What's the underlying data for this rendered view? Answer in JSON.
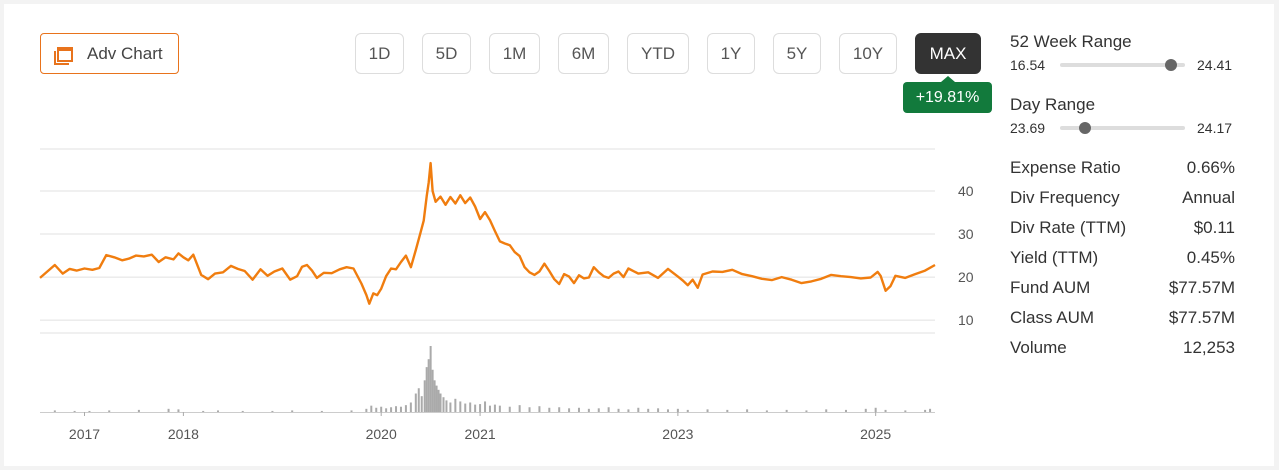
{
  "toolbar": {
    "adv_chart_label": "Adv Chart",
    "ranges": [
      "1D",
      "5D",
      "1M",
      "6M",
      "YTD",
      "1Y",
      "5Y",
      "10Y",
      "MAX"
    ],
    "active_range": "MAX",
    "change_badge": "+19.81%"
  },
  "week52": {
    "title": "52 Week Range",
    "low": "16.54",
    "high": "24.41",
    "position": 0.89
  },
  "day": {
    "title": "Day Range",
    "low": "23.69",
    "high": "24.17",
    "position": 0.2
  },
  "stats": [
    {
      "label": "Expense Ratio",
      "value": "0.66%"
    },
    {
      "label": "Div Frequency",
      "value": "Annual"
    },
    {
      "label": "Div Rate (TTM)",
      "value": "$0.11"
    },
    {
      "label": "Yield (TTM)",
      "value": "0.45%"
    },
    {
      "label": "Fund AUM",
      "value": "$77.57M"
    },
    {
      "label": "Class AUM",
      "value": "$77.57M"
    },
    {
      "label": "Volume",
      "value": "12,253"
    }
  ],
  "colors": {
    "line": "#f07d0f",
    "accent": "#e8731c",
    "badge": "#127a3c",
    "volume": "#aaaaaa"
  },
  "chart_data": {
    "type": "line",
    "y_ticks": [
      10,
      20,
      30,
      40
    ],
    "ylim": [
      7,
      50
    ],
    "xlim": [
      2016.55,
      2025.6
    ],
    "x_ticks": [
      {
        "x": 2017,
        "label": "2017"
      },
      {
        "x": 2018,
        "label": "2018"
      },
      {
        "x": 2020,
        "label": "2020"
      },
      {
        "x": 2021,
        "label": "2021"
      },
      {
        "x": 2023,
        "label": "2023"
      },
      {
        "x": 2025,
        "label": "2025"
      }
    ],
    "series": [
      {
        "x": [
          2016.55,
          2016.62,
          2016.7,
          2016.78,
          2016.85,
          2016.92,
          2017.0,
          2017.08,
          2017.15,
          2017.22,
          2017.3,
          2017.38,
          2017.45,
          2017.52,
          2017.6,
          2017.68,
          2017.75,
          2017.82,
          2017.9,
          2017.95,
          2018.0,
          2018.05,
          2018.1,
          2018.18,
          2018.25,
          2018.32,
          2018.4,
          2018.48,
          2018.55,
          2018.62,
          2018.7,
          2018.78,
          2018.85,
          2018.92,
          2019.0,
          2019.08,
          2019.15,
          2019.2,
          2019.25,
          2019.3,
          2019.35,
          2019.42,
          2019.5,
          2019.58,
          2019.65,
          2019.72,
          2019.8,
          2019.85,
          2019.88,
          2019.92,
          2019.96,
          2020.0,
          2020.05,
          2020.1,
          2020.15,
          2020.2,
          2020.25,
          2020.3,
          2020.35,
          2020.4,
          2020.43,
          2020.46,
          2020.48,
          2020.5,
          2020.52,
          2020.55,
          2020.6,
          2020.65,
          2020.7,
          2020.75,
          2020.8,
          2020.85,
          2020.9,
          2020.95,
          2021.0,
          2021.05,
          2021.1,
          2021.15,
          2021.2,
          2021.25,
          2021.3,
          2021.35,
          2021.4,
          2021.45,
          2021.5,
          2021.55,
          2021.6,
          2021.65,
          2021.7,
          2021.75,
          2021.8,
          2021.85,
          2021.9,
          2021.95,
          2022.0,
          2022.05,
          2022.1,
          2022.15,
          2022.2,
          2022.25,
          2022.3,
          2022.35,
          2022.4,
          2022.45,
          2022.5,
          2022.6,
          2022.7,
          2022.8,
          2022.9,
          2023.0,
          2023.05,
          2023.1,
          2023.15,
          2023.2,
          2023.25,
          2023.35,
          2023.45,
          2023.55,
          2023.65,
          2023.75,
          2023.85,
          2023.95,
          2024.05,
          2024.15,
          2024.25,
          2024.35,
          2024.45,
          2024.55,
          2024.65,
          2024.75,
          2024.85,
          2024.95,
          2025.02,
          2025.05,
          2025.1,
          2025.15,
          2025.2,
          2025.3,
          2025.4,
          2025.5,
          2025.6
        ],
        "y": [
          19.8,
          21.2,
          22.8,
          20.8,
          21.9,
          21.5,
          22.0,
          21.7,
          22.1,
          25.1,
          24.6,
          23.9,
          24.3,
          25.0,
          24.8,
          25.2,
          23.5,
          24.6,
          24.1,
          25.5,
          24.6,
          23.9,
          25.2,
          20.5,
          19.5,
          20.8,
          21.1,
          22.6,
          21.9,
          21.4,
          19.4,
          21.8,
          20.3,
          21.3,
          22.0,
          19.4,
          20.2,
          22.4,
          22.8,
          21.5,
          19.8,
          21.0,
          20.9,
          21.8,
          22.3,
          22.0,
          18.5,
          15.8,
          13.8,
          16.2,
          15.8,
          17.3,
          20.2,
          22.0,
          21.8,
          23.5,
          25.0,
          22.3,
          26.3,
          30.5,
          33.1,
          38.8,
          42.0,
          46.5,
          40.0,
          37.5,
          38.7,
          36.8,
          38.6,
          37.1,
          39.0,
          37.2,
          38.5,
          36.4,
          33.5,
          35.1,
          33.2,
          30.7,
          28.3,
          27.8,
          27.4,
          25.8,
          24.9,
          22.3,
          21.1,
          20.5,
          21.3,
          23.1,
          21.4,
          19.5,
          18.4,
          20.7,
          20.1,
          18.6,
          20.4,
          19.7,
          19.9,
          22.3,
          21.1,
          20.2,
          19.8,
          20.8,
          21.3,
          20.0,
          22.0,
          20.8,
          21.1,
          19.8,
          21.9,
          20.1,
          19.2,
          18.1,
          19.4,
          17.5,
          20.6,
          21.3,
          21.2,
          21.7,
          20.7,
          20.2,
          19.6,
          19.3,
          20.0,
          19.4,
          18.6,
          19.0,
          19.6,
          20.5,
          20.2,
          20.0,
          19.7,
          19.9,
          21.2,
          20.3,
          16.8,
          17.9,
          20.3,
          19.8,
          20.7,
          21.5,
          22.8
        ]
      }
    ],
    "volume_x": [
      2016.7,
      2016.9,
      2017.05,
      2017.25,
      2017.55,
      2017.85,
      2017.95,
      2018.2,
      2018.35,
      2018.6,
      2018.9,
      2019.1,
      2019.4,
      2019.7,
      2019.85,
      2019.9,
      2019.95,
      2020.0,
      2020.05,
      2020.1,
      2020.15,
      2020.2,
      2020.25,
      2020.3,
      2020.35,
      2020.38,
      2020.41,
      2020.44,
      2020.46,
      2020.48,
      2020.5,
      2020.52,
      2020.54,
      2020.56,
      2020.58,
      2020.6,
      2020.63,
      2020.66,
      2020.7,
      2020.75,
      2020.8,
      2020.85,
      2020.9,
      2020.95,
      2021.0,
      2021.05,
      2021.1,
      2021.15,
      2021.2,
      2021.3,
      2021.4,
      2021.5,
      2021.6,
      2021.7,
      2021.8,
      2021.9,
      2022.0,
      2022.1,
      2022.2,
      2022.3,
      2022.4,
      2022.5,
      2022.6,
      2022.7,
      2022.8,
      2022.9,
      2023.0,
      2023.1,
      2023.3,
      2023.5,
      2023.7,
      2023.9,
      2024.1,
      2024.3,
      2024.5,
      2024.7,
      2024.9,
      2025.0,
      2025.1,
      2025.3,
      2025.5,
      2025.55
    ],
    "volume_y": [
      0.3,
      0.2,
      0.2,
      0.3,
      0.4,
      0.6,
      0.5,
      0.2,
      0.3,
      0.2,
      0.2,
      0.3,
      0.2,
      0.3,
      0.6,
      1.2,
      0.8,
      1.0,
      0.7,
      0.9,
      1.1,
      1.0,
      1.3,
      1.8,
      3.5,
      4.5,
      3.0,
      6.0,
      8.5,
      10.0,
      12.5,
      8.0,
      6.0,
      5.0,
      4.2,
      3.5,
      2.8,
      2.2,
      1.8,
      2.5,
      2.0,
      1.6,
      1.8,
      1.4,
      1.5,
      2.0,
      1.2,
      1.4,
      1.2,
      1.0,
      1.3,
      0.9,
      1.1,
      0.8,
      0.9,
      0.7,
      0.8,
      0.6,
      0.7,
      0.9,
      0.6,
      0.5,
      0.8,
      0.6,
      0.7,
      0.5,
      0.6,
      0.4,
      0.5,
      0.4,
      0.5,
      0.3,
      0.4,
      0.3,
      0.5,
      0.4,
      0.6,
      0.8,
      0.4,
      0.3,
      0.4,
      0.6
    ]
  }
}
